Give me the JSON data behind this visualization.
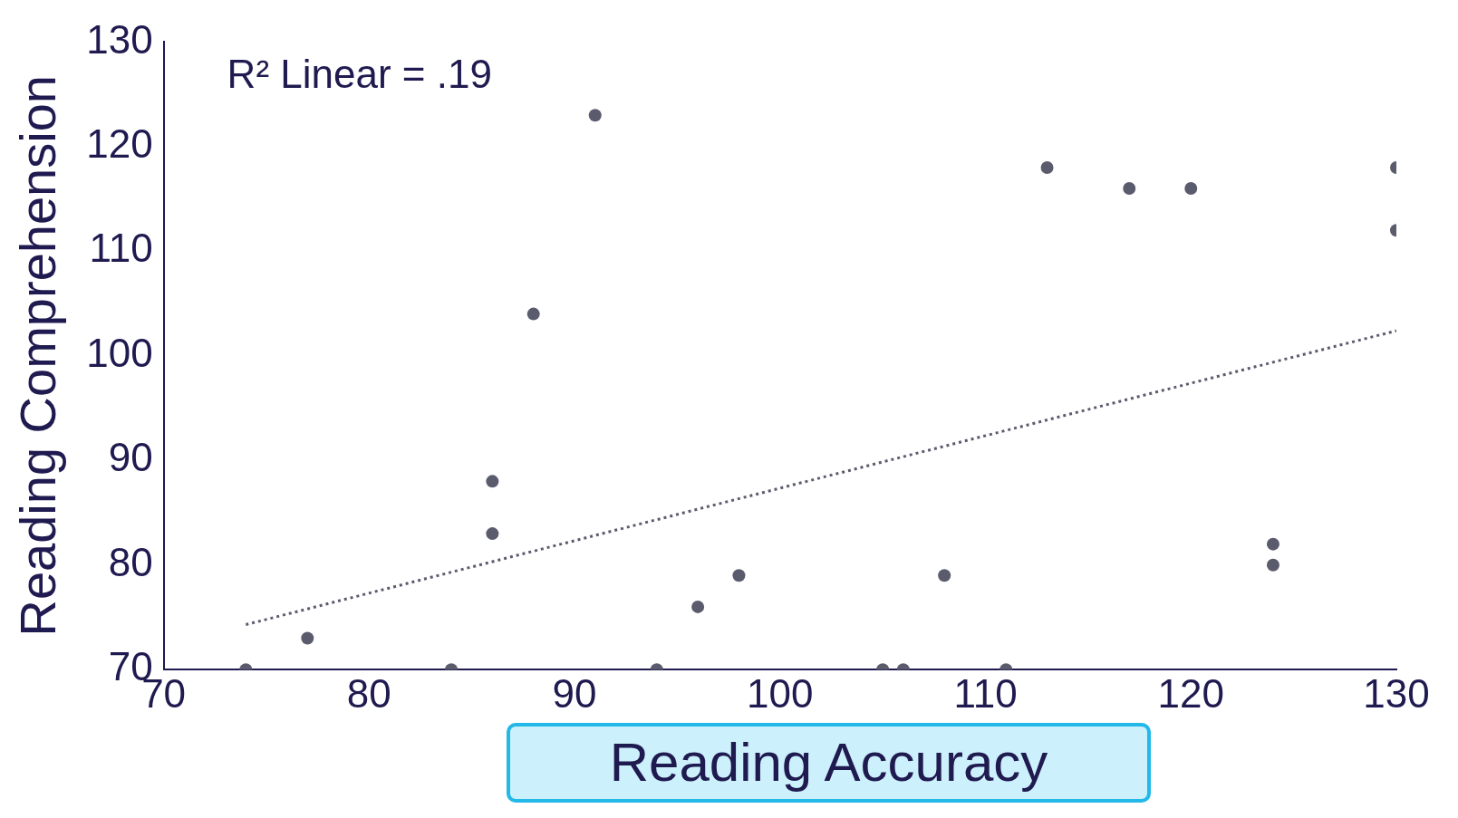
{
  "chart_data": {
    "type": "scatter",
    "xlabel": "Reading Accuracy",
    "ylabel": "Reading Comprehension",
    "annotations": [
      "R² Linear = .19"
    ],
    "xlim": [
      70,
      130
    ],
    "ylim": [
      70,
      130
    ],
    "xticks": [
      70,
      80,
      90,
      100,
      110,
      120,
      130
    ],
    "yticks": [
      70,
      80,
      90,
      100,
      110,
      120,
      130
    ],
    "grid": false,
    "marker": "circle",
    "series": [
      {
        "type": "scatter",
        "color": "#5b5b6e",
        "x": [
          74,
          77,
          84,
          86,
          86,
          88,
          91,
          94,
          96,
          98,
          105,
          106,
          108,
          111,
          113,
          117,
          120,
          124,
          124,
          130,
          130
        ],
        "values": [
          70,
          73,
          70,
          88,
          83,
          104,
          123,
          70,
          76,
          79,
          70,
          70,
          79,
          70,
          118,
          116,
          116,
          82,
          80,
          118,
          112
        ]
      },
      {
        "type": "line",
        "color": "#5b5b6e",
        "line_style": "dotted",
        "marker": "none",
        "x": [
          74,
          130
        ],
        "values": [
          74.3,
          102.4
        ]
      }
    ]
  }
}
